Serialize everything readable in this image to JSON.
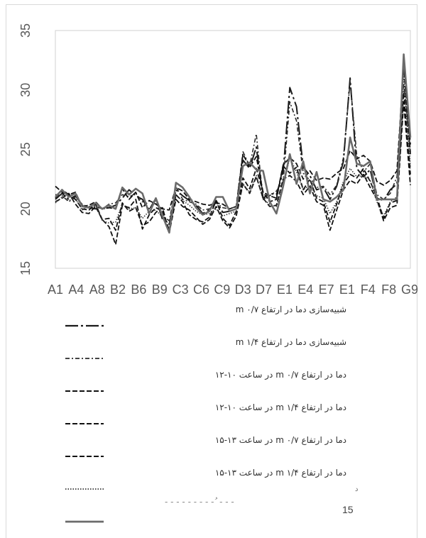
{
  "chart_data": {
    "type": "line",
    "x_tick_labels": [
      "A1",
      "A4",
      "A8",
      "B2",
      "B6",
      "B9",
      "C3",
      "C6",
      "C9",
      "D3",
      "D7",
      "E1",
      "E4",
      "E7",
      "E1",
      "F4",
      "F8",
      "G9"
    ],
    "ylim": [
      15,
      35
    ],
    "yticks": [
      15,
      20,
      25,
      30,
      35
    ],
    "grid": false,
    "legend_position": "bottom",
    "series": [
      {
        "name": "شبیه‌سازی دما در ارتفاع m ۰/۷",
        "color": "#1a1a1a",
        "dash": "18,4,3,4",
        "width": 2,
        "values": [
          20.8,
          21.3,
          20.8,
          21.1,
          20.3,
          20.1,
          20.0,
          20.0,
          20.1,
          20.3,
          20.9,
          21.6,
          21.1,
          20.8,
          19.9,
          20.9,
          19.1,
          18.7,
          21.6,
          21.1,
          20.7,
          20.3,
          19.6,
          19.9,
          20.7,
          19.7,
          19.8,
          20.0,
          24.1,
          23.4,
          25.2,
          20.9,
          21.3,
          21.2,
          23.1,
          30.2,
          28.6,
          23.5,
          22.8,
          21.6,
          21.8,
          20.8,
          21.9,
          24.0,
          31.0,
          23.4,
          22.7,
          23.3,
          20.9,
          20.7,
          21.6,
          22.1,
          32.5,
          25.4
        ]
      },
      {
        "name": "شبیه‌سازی دما در ارتفاع m ۱/۴",
        "color": "#2b2b2b",
        "dash": "6,3,2,3",
        "width": 1.6,
        "values": [
          21.2,
          21.1,
          20.6,
          21.0,
          20.4,
          20.1,
          20.2,
          20.0,
          20.4,
          20.5,
          21.2,
          21.0,
          21.3,
          20.6,
          20.0,
          20.7,
          19.4,
          19.0,
          21.9,
          20.8,
          20.6,
          20.4,
          19.9,
          20.0,
          20.5,
          20.1,
          20.0,
          20.2,
          24.8,
          23.6,
          26.3,
          20.8,
          21.1,
          21.5,
          22.3,
          29.0,
          27.4,
          23.0,
          22.4,
          21.8,
          21.9,
          21.2,
          22.0,
          24.3,
          30.7,
          24.5,
          23.1,
          23.8,
          21.2,
          20.8,
          21.3,
          22.7,
          30.5,
          24.8
        ]
      },
      {
        "name": "دما در ارتفاع m ۰/۷ در ساعت ۱۰-۱۲",
        "color": "#111111",
        "dash": "7,3",
        "width": 1.8,
        "values": [
          21.9,
          21.4,
          21.1,
          20.8,
          20.0,
          19.9,
          20.4,
          19.1,
          19.2,
          18.2,
          20.5,
          19.8,
          20.1,
          18.6,
          18.9,
          19.7,
          20.1,
          18.0,
          20.8,
          20.2,
          19.9,
          19.3,
          18.7,
          19.1,
          20.2,
          19.0,
          18.4,
          19.4,
          22.1,
          21.3,
          22.7,
          20.9,
          20.2,
          20.3,
          22.5,
          22.8,
          22.3,
          21.2,
          21.9,
          20.6,
          20.3,
          18.2,
          19.9,
          21.6,
          22.4,
          22.1,
          22.9,
          21.8,
          20.8,
          19.0,
          20.1,
          20.3,
          29.0,
          22.0
        ]
      },
      {
        "name": "دما در ارتفاع m ۱/۴ در ساعت ۱۰-۱۲",
        "color": "#111111",
        "dash": "7,3",
        "width": 1.8,
        "values": [
          20.6,
          20.9,
          21.3,
          20.4,
          19.7,
          19.6,
          20.2,
          19.1,
          18.5,
          17.0,
          20.3,
          20.1,
          20.8,
          18.3,
          19.5,
          20.1,
          19.8,
          18.2,
          21.2,
          20.6,
          19.5,
          19.1,
          18.9,
          19.3,
          20.7,
          19.2,
          18.6,
          19.8,
          22.6,
          21.7,
          23.4,
          21.4,
          20.6,
          20.8,
          23.6,
          23.0,
          23.5,
          21.6,
          22.5,
          20.9,
          20.6,
          18.9,
          20.4,
          22.1,
          22.9,
          22.6,
          23.4,
          22.3,
          21.0,
          19.2,
          20.5,
          20.7,
          29.8,
          22.9
        ]
      },
      {
        "name": "دما در ارتفاع m ۰/۷ در ساعت ۱۳-۱۵",
        "color": "#111111",
        "dash": "7,3",
        "width": 1.8,
        "values": [
          20.9,
          21.6,
          21.2,
          21.4,
          20.2,
          20.3,
          20.6,
          20.0,
          20.1,
          20.0,
          21.7,
          20.8,
          21.4,
          20.1,
          20.7,
          20.4,
          20.0,
          19.9,
          21.8,
          21.5,
          20.8,
          20.6,
          20.4,
          20.3,
          20.5,
          20.4,
          20.0,
          20.2,
          24.6,
          23.5,
          24.4,
          21.4,
          21.1,
          20.9,
          23.7,
          24.3,
          23.8,
          22.5,
          23.2,
          22.4,
          22.6,
          22.5,
          23.0,
          23.4,
          24.9,
          24.2,
          24.5,
          24.0,
          22.3,
          22.0,
          22.4,
          23.2,
          32.0,
          24.6
        ]
      },
      {
        "name": "دما در ارتفاع m ۱/۴ در ساعت ۱۳-۱۵",
        "color": "#333333",
        "dash": "1.5,2",
        "width": 1.6,
        "values": [
          20.5,
          21.0,
          20.7,
          20.9,
          19.9,
          20.2,
          20.3,
          19.0,
          18.8,
          18.9,
          20.4,
          20.0,
          20.1,
          19.2,
          19.8,
          19.9,
          19.3,
          18.7,
          21.1,
          20.7,
          20.3,
          19.8,
          19.5,
          19.6,
          20.0,
          19.4,
          19.6,
          19.8,
          22.1,
          21.4,
          22.8,
          20.8,
          20.4,
          20.2,
          22.0,
          24.3,
          23.1,
          21.6,
          22.0,
          21.1,
          20.9,
          19.6,
          20.6,
          22.3,
          23.4,
          22.7,
          22.8,
          22.4,
          20.6,
          19.4,
          20.6,
          21.0,
          31.2,
          23.5
        ]
      },
      {
        "name": "",
        "color": "#6b6b6b",
        "dash": "",
        "width": 2.6,
        "values": [
          21.0,
          21.6,
          21.0,
          21.3,
          20.2,
          20.1,
          20.5,
          20.0,
          20.3,
          20.0,
          21.8,
          21.2,
          21.7,
          21.3,
          19.6,
          20.9,
          19.4,
          18.0,
          22.2,
          21.8,
          21.0,
          20.1,
          19.5,
          19.8,
          21.0,
          21.0,
          19.8,
          20.0,
          23.6,
          23.9,
          23.3,
          23.2,
          20.6,
          19.6,
          21.9,
          24.6,
          22.1,
          24.0,
          21.3,
          23.1,
          20.8,
          20.6,
          21.0,
          21.6,
          26.0,
          23.8,
          23.6,
          24.0,
          20.8,
          20.8,
          20.8,
          20.8,
          33.0,
          26.0
        ]
      }
    ]
  },
  "page_number": "15",
  "legend_trailing_text": "- - - - - - - - - ُ - - -",
  "legend_trailing_mark": "د"
}
